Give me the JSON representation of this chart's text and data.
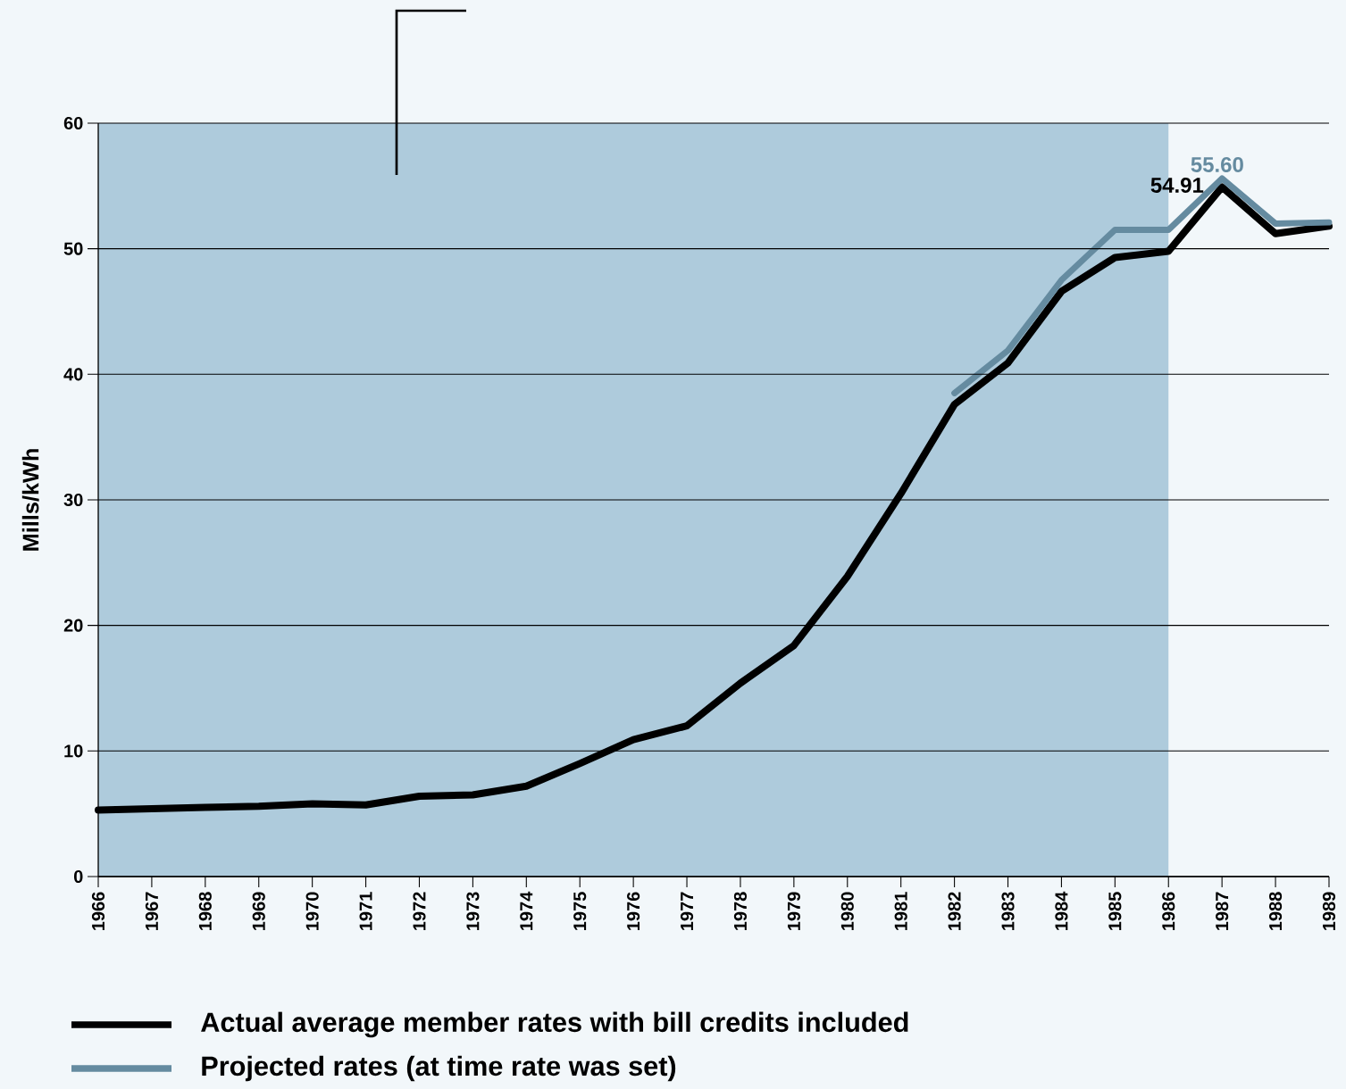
{
  "chart_data": {
    "type": "line",
    "ylabel": "Mills/kWh",
    "x": [
      1966,
      1967,
      1968,
      1969,
      1970,
      1971,
      1972,
      1973,
      1974,
      1975,
      1976,
      1977,
      1978,
      1979,
      1980,
      1981,
      1982,
      1983,
      1984,
      1985,
      1986,
      1987,
      1988,
      1989
    ],
    "series": [
      {
        "name": "Actual average member rates with bill credits included",
        "color": "#000000",
        "values": [
          5.3,
          5.4,
          5.5,
          5.6,
          5.8,
          5.7,
          6.4,
          6.5,
          7.2,
          9.0,
          10.9,
          12.0,
          15.4,
          18.4,
          23.9,
          30.5,
          37.6,
          40.9,
          46.6,
          49.3,
          49.8,
          54.91,
          51.2,
          51.8
        ],
        "value_labels": [
          null,
          null,
          null,
          null,
          null,
          null,
          null,
          null,
          null,
          null,
          null,
          null,
          null,
          null,
          null,
          null,
          null,
          null,
          null,
          null,
          null,
          "54.91",
          null,
          null
        ]
      },
      {
        "name": "Projected rates (at time rate was set)",
        "color": "#658ba0",
        "values": [
          null,
          null,
          null,
          null,
          null,
          null,
          null,
          null,
          null,
          null,
          null,
          null,
          null,
          null,
          null,
          null,
          38.5,
          41.9,
          47.5,
          51.5,
          51.5,
          55.6,
          52.0,
          52.1
        ],
        "value_labels": [
          null,
          null,
          null,
          null,
          null,
          null,
          null,
          null,
          null,
          null,
          null,
          null,
          null,
          null,
          null,
          null,
          null,
          null,
          null,
          null,
          null,
          "55.60",
          null,
          null
        ]
      }
    ],
    "xlim": [
      1966,
      1989
    ],
    "xticks": [
      1966,
      1967,
      1968,
      1969,
      1970,
      1971,
      1972,
      1973,
      1974,
      1975,
      1976,
      1977,
      1978,
      1979,
      1980,
      1981,
      1982,
      1983,
      1984,
      1985,
      1986,
      1987,
      1988,
      1989
    ],
    "ylim": [
      0,
      60
    ],
    "yticks": [
      0,
      10,
      20,
      30,
      40,
      50,
      60
    ],
    "bands": [
      {
        "axis": "x",
        "from": 1966,
        "to": 1986,
        "color": "#aecbdc"
      }
    ],
    "grid": "y",
    "legend": "bottom",
    "line_style": "solid",
    "marker": "none"
  }
}
